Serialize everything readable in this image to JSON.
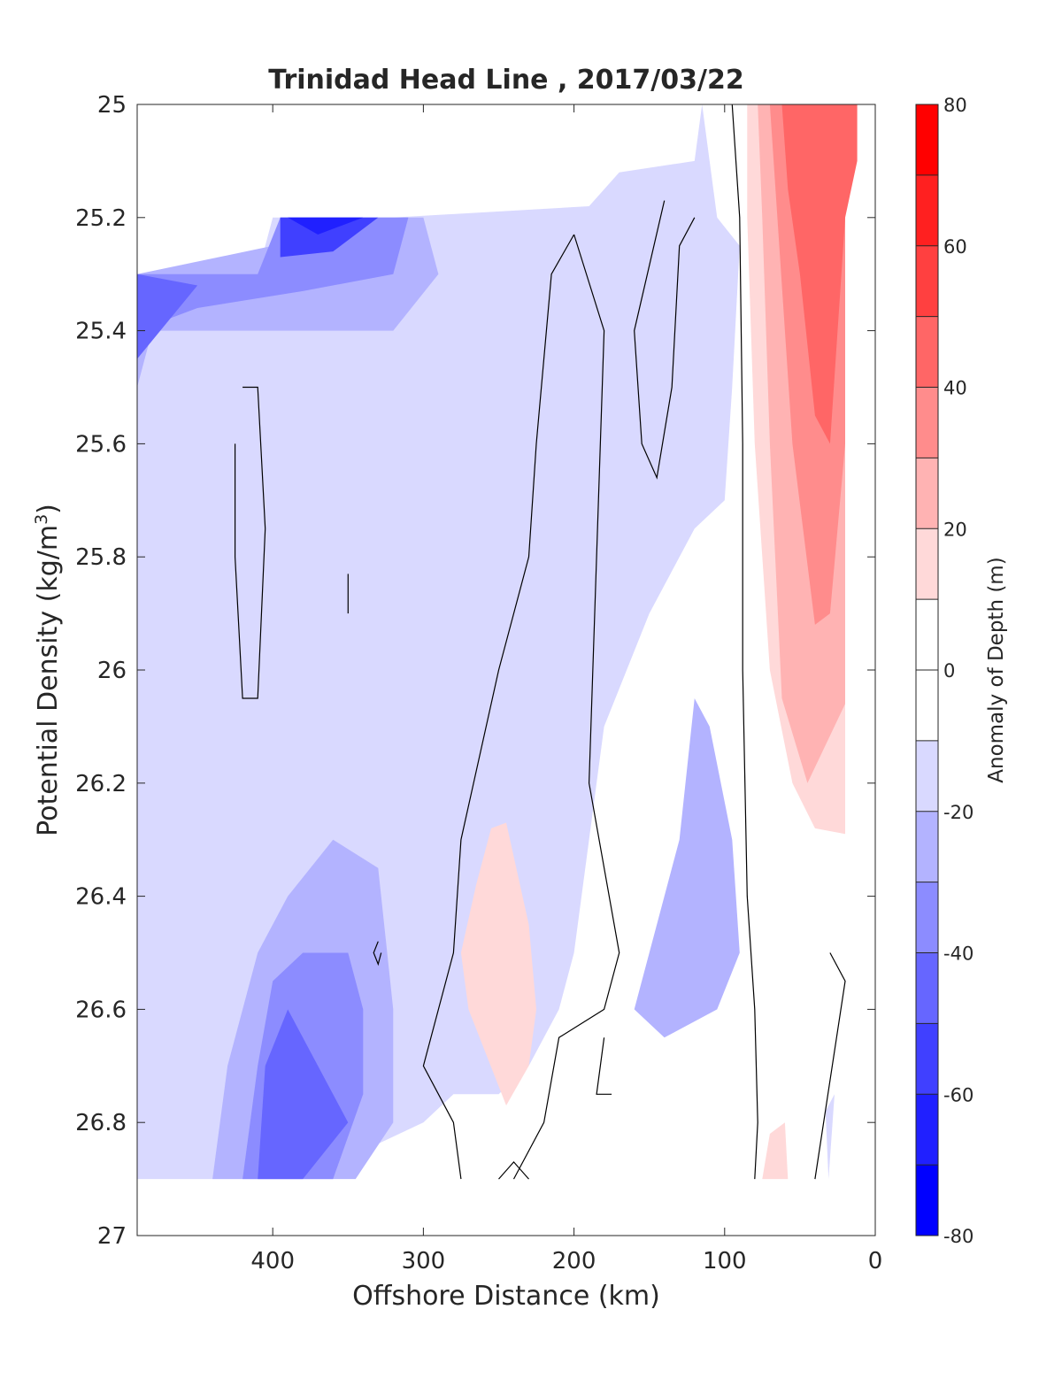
{
  "chart_data": {
    "type": "heatmap",
    "subtype": "filled-contour",
    "title": "Trinidad Head Line , 2017/03/22",
    "xlabel": "Offshore Distance (km)",
    "ylabel_main": "Potential Density (kg/m",
    "ylabel_sup": "3",
    "ylabel_close": ")",
    "xlim": [
      490,
      0
    ],
    "ylim": [
      25,
      27
    ],
    "x_reversed": true,
    "y_reversed": true,
    "xticks": [
      400,
      300,
      200,
      100,
      0
    ],
    "xtick_labels": [
      "400",
      "300",
      "200",
      "100",
      "0"
    ],
    "yticks": [
      25,
      25.2,
      25.4,
      25.6,
      25.8,
      26,
      26.2,
      26.4,
      26.6,
      26.8,
      27
    ],
    "ytick_labels": [
      "25",
      "25.2",
      "25.4",
      "25.6",
      "25.8",
      "26",
      "26.2",
      "26.4",
      "26.6",
      "26.8",
      "27"
    ],
    "colorbar": {
      "label": "Anomaly of Depth (m)",
      "range": [
        -80,
        80
      ],
      "ticks": [
        80,
        60,
        40,
        20,
        0,
        -20,
        -40,
        -60,
        -80
      ],
      "tick_labels": [
        "80",
        "60",
        "40",
        "20",
        "0",
        "-20",
        "-40",
        "-60",
        "-80"
      ],
      "levels": [
        {
          "from": 70,
          "to": 80,
          "color": "#ff0000"
        },
        {
          "from": 60,
          "to": 70,
          "color": "#ff2020"
        },
        {
          "from": 50,
          "to": 60,
          "color": "#ff4040"
        },
        {
          "from": 40,
          "to": 50,
          "color": "#ff6666"
        },
        {
          "from": 30,
          "to": 40,
          "color": "#ff8c8c"
        },
        {
          "from": 20,
          "to": 30,
          "color": "#ffb3b3"
        },
        {
          "from": 10,
          "to": 20,
          "color": "#ffd9d9"
        },
        {
          "from": 0,
          "to": 10,
          "color": "#ffffff"
        },
        {
          "from": -10,
          "to": 0,
          "color": "#ffffff"
        },
        {
          "from": -20,
          "to": -10,
          "color": "#d9d9ff"
        },
        {
          "from": -30,
          "to": -20,
          "color": "#b3b3ff"
        },
        {
          "from": -40,
          "to": -30,
          "color": "#8c8cff"
        },
        {
          "from": -50,
          "to": -40,
          "color": "#6666ff"
        },
        {
          "from": -60,
          "to": -50,
          "color": "#4040ff"
        },
        {
          "from": -70,
          "to": -60,
          "color": "#2020ff"
        },
        {
          "from": -80,
          "to": -70,
          "color": "#0000ff"
        }
      ]
    },
    "data_coverage": {
      "x": [
        490,
        20
      ],
      "y": [
        25,
        26.9
      ]
    },
    "regions": [
      {
        "anomaly_bin": "-20 to -10",
        "color": "#d9d9ff",
        "points": [
          [
            490,
            25.3
          ],
          [
            410,
            25.3
          ],
          [
            400,
            25.2
          ],
          [
            320,
            25.2
          ],
          [
            190,
            25.18
          ],
          [
            170,
            25.12
          ],
          [
            120,
            25.1
          ],
          [
            115,
            25.0
          ],
          [
            105,
            25.2
          ],
          [
            90,
            25.25
          ],
          [
            95,
            25.5
          ],
          [
            100,
            25.7
          ],
          [
            120,
            25.75
          ],
          [
            150,
            25.9
          ],
          [
            180,
            26.1
          ],
          [
            190,
            26.3
          ],
          [
            200,
            26.5
          ],
          [
            210,
            26.6
          ],
          [
            230,
            26.7
          ],
          [
            250,
            26.75
          ],
          [
            280,
            26.75
          ],
          [
            300,
            26.8
          ],
          [
            340,
            26.85
          ],
          [
            360,
            26.9
          ],
          [
            490,
            26.9
          ]
        ]
      },
      {
        "anomaly_bin": "-30 to -20",
        "color": "#b3b3ff",
        "points": [
          [
            490,
            25.3
          ],
          [
            400,
            25.25
          ],
          [
            330,
            25.2
          ],
          [
            300,
            25.2
          ],
          [
            290,
            25.3
          ],
          [
            320,
            25.4
          ],
          [
            370,
            25.4
          ],
          [
            420,
            25.4
          ],
          [
            480,
            25.4
          ],
          [
            490,
            25.5
          ]
        ]
      },
      {
        "anomaly_bin": "-40 to -30",
        "color": "#8c8cff",
        "points": [
          [
            490,
            25.3
          ],
          [
            410,
            25.3
          ],
          [
            395,
            25.2
          ],
          [
            310,
            25.2
          ],
          [
            320,
            25.3
          ],
          [
            380,
            25.33
          ],
          [
            450,
            25.36
          ],
          [
            490,
            25.4
          ]
        ]
      },
      {
        "anomaly_bin": "-50 to -40",
        "color": "#6666ff",
        "points": [
          [
            490,
            25.3
          ],
          [
            450,
            25.32
          ],
          [
            490,
            25.45
          ]
        ]
      },
      {
        "anomaly_bin": "-60 to -50",
        "color": "#4040ff",
        "points": [
          [
            395,
            25.2
          ],
          [
            330,
            25.2
          ],
          [
            360,
            25.26
          ],
          [
            395,
            25.27
          ]
        ]
      },
      {
        "anomaly_bin": "-70 to -60",
        "color": "#2020ff",
        "points": [
          [
            390,
            25.2
          ],
          [
            340,
            25.2
          ],
          [
            370,
            25.23
          ]
        ]
      },
      {
        "anomaly_bin": "-30 to -20",
        "color": "#b3b3ff",
        "points": [
          [
            360,
            26.3
          ],
          [
            330,
            26.35
          ],
          [
            320,
            26.6
          ],
          [
            320,
            26.8
          ],
          [
            345,
            26.9
          ],
          [
            440,
            26.9
          ],
          [
            430,
            26.7
          ],
          [
            410,
            26.5
          ],
          [
            390,
            26.4
          ]
        ]
      },
      {
        "anomaly_bin": "-40 to -30",
        "color": "#8c8cff",
        "points": [
          [
            350,
            26.5
          ],
          [
            340,
            26.6
          ],
          [
            340,
            26.75
          ],
          [
            360,
            26.9
          ],
          [
            420,
            26.9
          ],
          [
            410,
            26.7
          ],
          [
            400,
            26.55
          ],
          [
            380,
            26.5
          ]
        ]
      },
      {
        "anomaly_bin": "-50 to -40",
        "color": "#6666ff",
        "points": [
          [
            390,
            26.6
          ],
          [
            350,
            26.8
          ],
          [
            380,
            26.9
          ],
          [
            410,
            26.9
          ],
          [
            405,
            26.7
          ]
        ]
      },
      {
        "anomaly_bin": "-30 to -20",
        "color": "#b3b3ff",
        "points": [
          [
            140,
            26.4
          ],
          [
            150,
            26.5
          ],
          [
            160,
            26.6
          ],
          [
            140,
            26.65
          ],
          [
            105,
            26.6
          ],
          [
            90,
            26.5
          ],
          [
            95,
            26.3
          ],
          [
            110,
            26.1
          ],
          [
            120,
            26.05
          ],
          [
            130,
            26.3
          ]
        ]
      },
      {
        "anomaly_bin": "10 to 20",
        "color": "#ffd9d9",
        "points": [
          [
            255,
            26.28
          ],
          [
            245,
            26.27
          ],
          [
            230,
            26.45
          ],
          [
            225,
            26.6
          ],
          [
            230,
            26.7
          ],
          [
            245,
            26.77
          ],
          [
            270,
            26.6
          ],
          [
            275,
            26.5
          ],
          [
            265,
            26.38
          ]
        ]
      },
      {
        "anomaly_bin": "10 to 20",
        "color": "#ffd9d9",
        "points": [
          [
            85,
            25.0
          ],
          [
            20,
            25.0
          ],
          [
            20,
            26.29
          ],
          [
            40,
            26.28
          ],
          [
            55,
            26.2
          ],
          [
            70,
            26.0
          ],
          [
            80,
            25.6
          ],
          [
            85,
            25.2
          ]
        ]
      },
      {
        "anomaly_bin": "20 to 30",
        "color": "#ffb3b3",
        "points": [
          [
            78,
            25.0
          ],
          [
            20,
            25.0
          ],
          [
            20,
            26.06
          ],
          [
            45,
            26.2
          ],
          [
            62,
            26.05
          ],
          [
            70,
            25.6
          ],
          [
            75,
            25.2
          ]
        ]
      },
      {
        "anomaly_bin": "30 to 40",
        "color": "#ff8c8c",
        "points": [
          [
            70,
            25.0
          ],
          [
            20,
            25.0
          ],
          [
            20,
            25.6
          ],
          [
            30,
            25.9
          ],
          [
            40,
            25.92
          ],
          [
            55,
            25.6
          ],
          [
            65,
            25.2
          ]
        ]
      },
      {
        "anomaly_bin": "40 to 50",
        "color": "#ff6666",
        "points": [
          [
            62,
            25.0
          ],
          [
            12,
            25.0
          ],
          [
            12,
            25.1
          ],
          [
            20,
            25.2
          ],
          [
            30,
            25.6
          ],
          [
            40,
            25.55
          ],
          [
            50,
            25.3
          ],
          [
            58,
            25.15
          ]
        ]
      },
      {
        "anomaly_bin": "10 to 20",
        "color": "#ffd9d9",
        "points": [
          [
            75,
            26.9
          ],
          [
            58,
            26.9
          ],
          [
            60,
            26.8
          ],
          [
            70,
            26.82
          ]
        ]
      },
      {
        "anomaly_bin": "-20 to -10",
        "color": "#d9d9ff",
        "points": [
          [
            31,
            26.9
          ],
          [
            27,
            26.75
          ],
          [
            33,
            26.78
          ]
        ]
      }
    ],
    "zero_contours": [
      [
        [
          95,
          25.0
        ],
        [
          90,
          25.2
        ],
        [
          88,
          25.6
        ],
        [
          88,
          26.0
        ],
        [
          85,
          26.4
        ],
        [
          80,
          26.6
        ],
        [
          78,
          26.8
        ],
        [
          80,
          26.9
        ]
      ],
      [
        [
          420,
          25.5
        ],
        [
          410,
          25.5
        ],
        [
          405,
          25.75
        ],
        [
          410,
          26.05
        ],
        [
          420,
          26.05
        ],
        [
          425,
          25.8
        ],
        [
          425,
          25.6
        ]
      ],
      [
        [
          350,
          25.83
        ],
        [
          350,
          25.9
        ]
      ],
      [
        [
          330,
          26.48
        ],
        [
          333,
          26.5
        ],
        [
          330,
          26.52
        ],
        [
          328,
          26.5
        ]
      ],
      [
        [
          200,
          25.23
        ],
        [
          215,
          25.3
        ],
        [
          225,
          25.6
        ],
        [
          230,
          25.8
        ],
        [
          250,
          26.0
        ],
        [
          275,
          26.3
        ],
        [
          280,
          26.5
        ],
        [
          290,
          26.6
        ],
        [
          300,
          26.7
        ],
        [
          280,
          26.8
        ],
        [
          275,
          26.9
        ]
      ],
      [
        [
          200,
          25.23
        ],
        [
          180,
          25.4
        ],
        [
          185,
          25.8
        ],
        [
          190,
          26.2
        ],
        [
          170,
          26.5
        ],
        [
          180,
          26.6
        ],
        [
          210,
          26.65
        ],
        [
          220,
          26.8
        ],
        [
          240,
          26.9
        ]
      ],
      [
        [
          140,
          25.17
        ],
        [
          160,
          25.4
        ],
        [
          155,
          25.6
        ],
        [
          145,
          25.66
        ],
        [
          135,
          25.5
        ],
        [
          130,
          25.25
        ],
        [
          120,
          25.2
        ]
      ],
      [
        [
          180,
          26.65
        ],
        [
          185,
          26.75
        ],
        [
          175,
          26.75
        ]
      ],
      [
        [
          30,
          26.5
        ],
        [
          20,
          26.55
        ],
        [
          40,
          26.9
        ]
      ],
      [
        [
          250,
          26.9
        ],
        [
          240,
          26.87
        ],
        [
          230,
          26.9
        ]
      ]
    ]
  }
}
